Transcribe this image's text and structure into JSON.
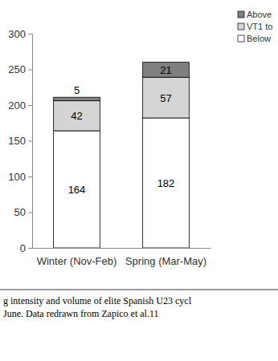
{
  "chart_data": {
    "type": "bar",
    "stacked": true,
    "data_labels": true,
    "grid": false,
    "categories": [
      "Winter (Nov-Feb)",
      "Spring (Mar-May)"
    ],
    "series": [
      {
        "name": "Below",
        "color": "#ffffff",
        "values": [
          164,
          182
        ]
      },
      {
        "name": "VT1 to",
        "color": "#d4d4d4",
        "values": [
          42,
          57
        ]
      },
      {
        "name": "Above",
        "color": "#7f7f7f",
        "values": [
          5,
          21
        ]
      }
    ],
    "ylim": [
      0,
      300
    ],
    "yticks": [
      0,
      50,
      100,
      150,
      200,
      250,
      300
    ],
    "annotations": [
      "g intensity and volume of elite Spanish U23 cycl",
      "June. Data redrawn from Zapico et al.11"
    ]
  }
}
